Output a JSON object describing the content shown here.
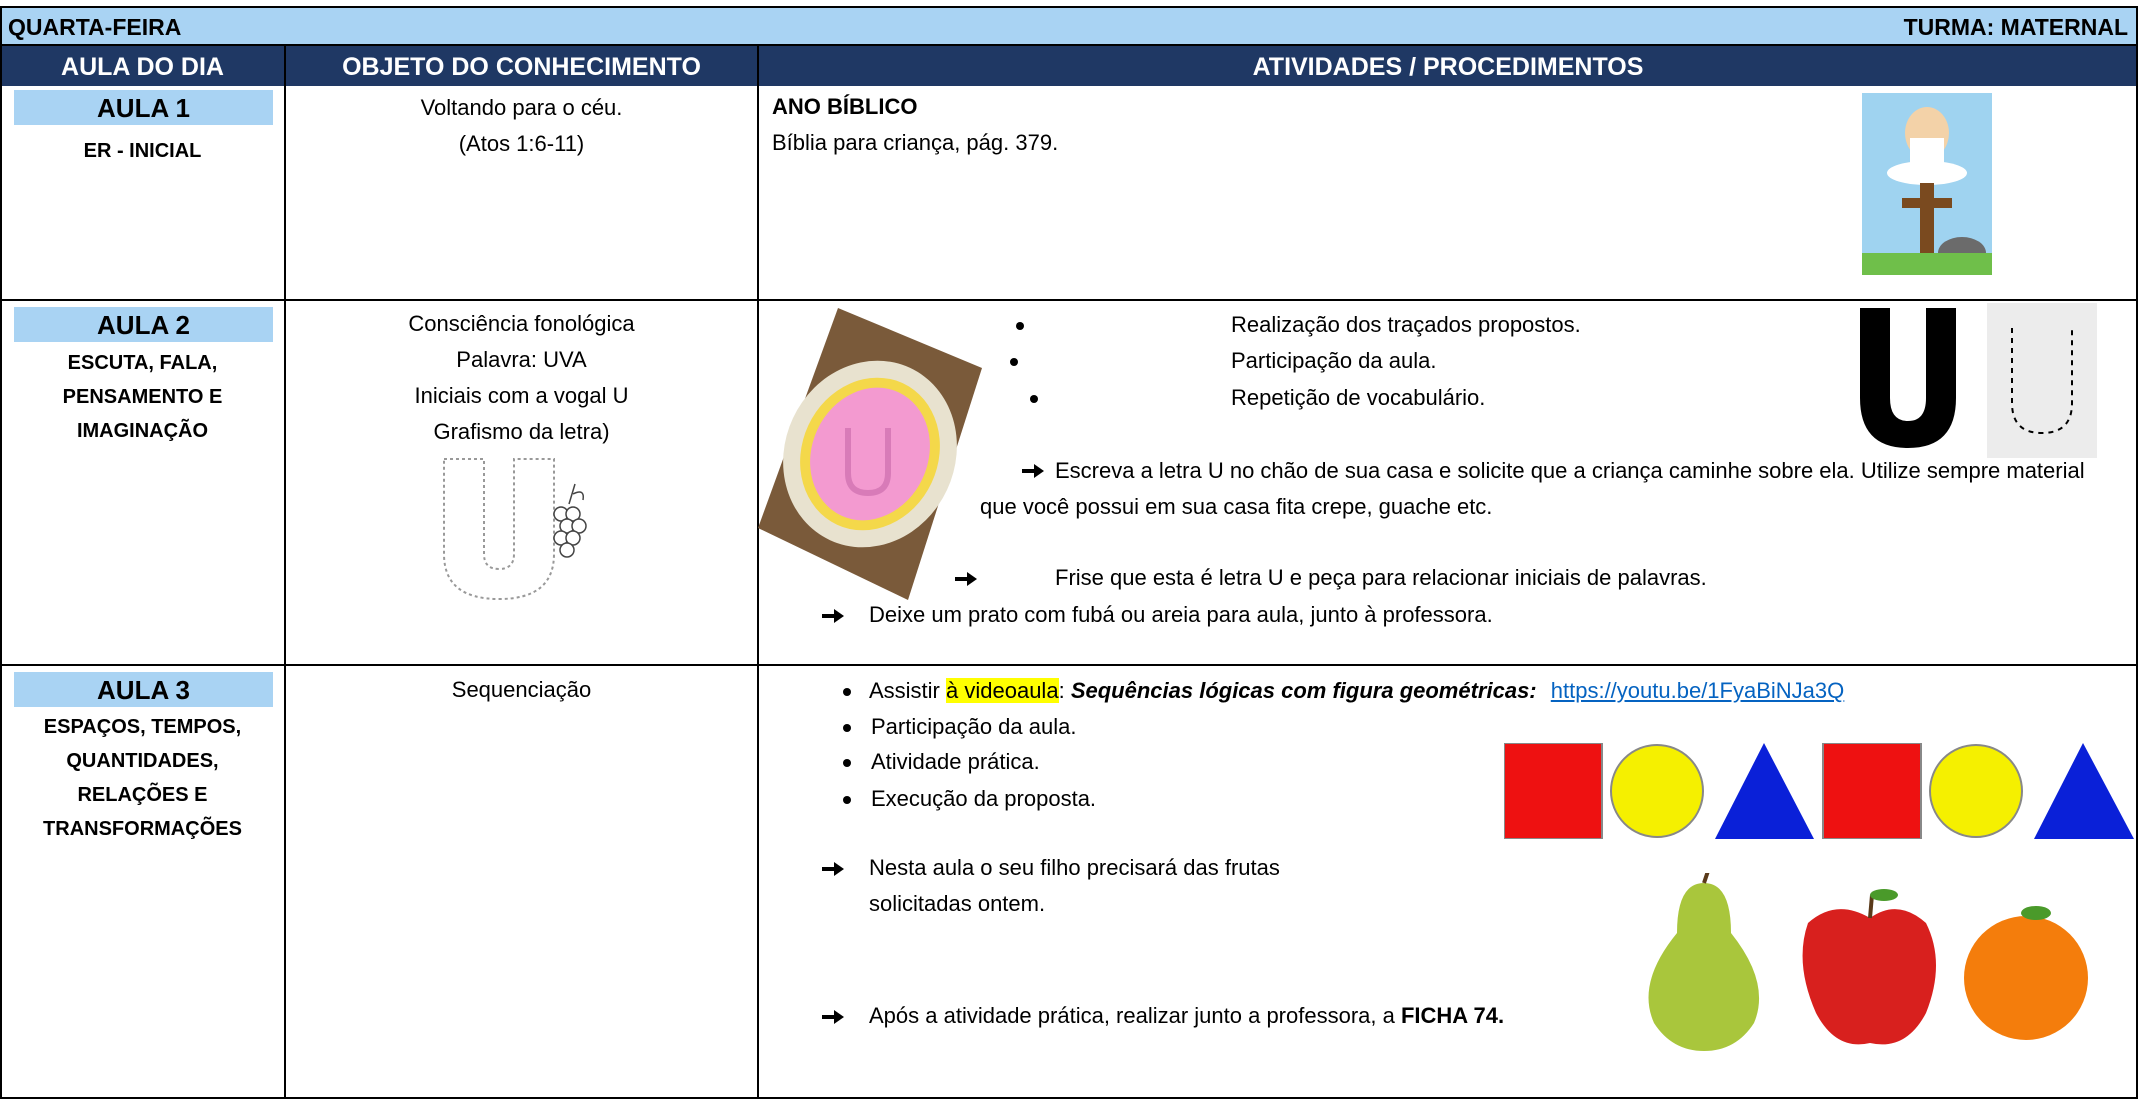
{
  "header": {
    "day": "QUARTA-FEIRA",
    "class": "TURMA: MATERNAL"
  },
  "columns": [
    "AULA DO DIA",
    "OBJETO DO CONHECIMENTO",
    "ATIVIDADES / PROCEDIMENTOS"
  ],
  "rows": [
    {
      "aula": "AULA 1",
      "area": "ER - INICIAL",
      "objeto": [
        "Voltando para o céu.",
        "(Atos 1:6-11)"
      ],
      "atividades": {
        "heading": "ANO BÍBLICO",
        "text": "Bíblia para criança, pág. 379."
      }
    },
    {
      "aula": "AULA 2",
      "area": "ESCUTA, FALA, PENSAMENTO E IMAGINAÇÃO",
      "objeto": [
        "Consciência fonológica",
        "Palavra: UVA",
        "Iniciais com a vogal U",
        "Grafismo da letra)"
      ],
      "atividades": {
        "bullets": [
          "Realização dos traçados propostos.",
          "Participação da aula.",
          "Repetição de vocabulário."
        ],
        "arrows": [
          "Escreva a letra U no chão de sua casa e solicite que a criança caminhe sobre ela. Utilize sempre material que você possui em sua casa fita crepe, guache etc.",
          "Frise que esta é letra U e peça para relacionar iniciais de palavras.",
          "Deixe um prato com fubá ou areia para aula, junto à professora."
        ]
      }
    },
    {
      "aula": "AULA 3",
      "area": "ESPAÇOS, TEMPOS, QUANTIDADES, RELAÇÕES E TRANSFORMAÇÕES",
      "objeto": [
        "Sequenciação"
      ],
      "atividades": {
        "video": {
          "prefix": "Assistir",
          "highlight": "à videoaula",
          "separator": ":",
          "title": "Sequências lógicas com figura geométricas:",
          "link": "https://youtu.be/1FyaBiNJa3Q"
        },
        "bullets": [
          "Participação da aula.",
          "Atividade prática.",
          "Execução da proposta."
        ],
        "arrows": [
          "Nesta aula o seu filho precisará das frutas solicitadas ontem."
        ],
        "final": {
          "text": "Após a atividade prática, realizar junto a professora, a",
          "bold": "FICHA 74."
        }
      }
    }
  ]
}
